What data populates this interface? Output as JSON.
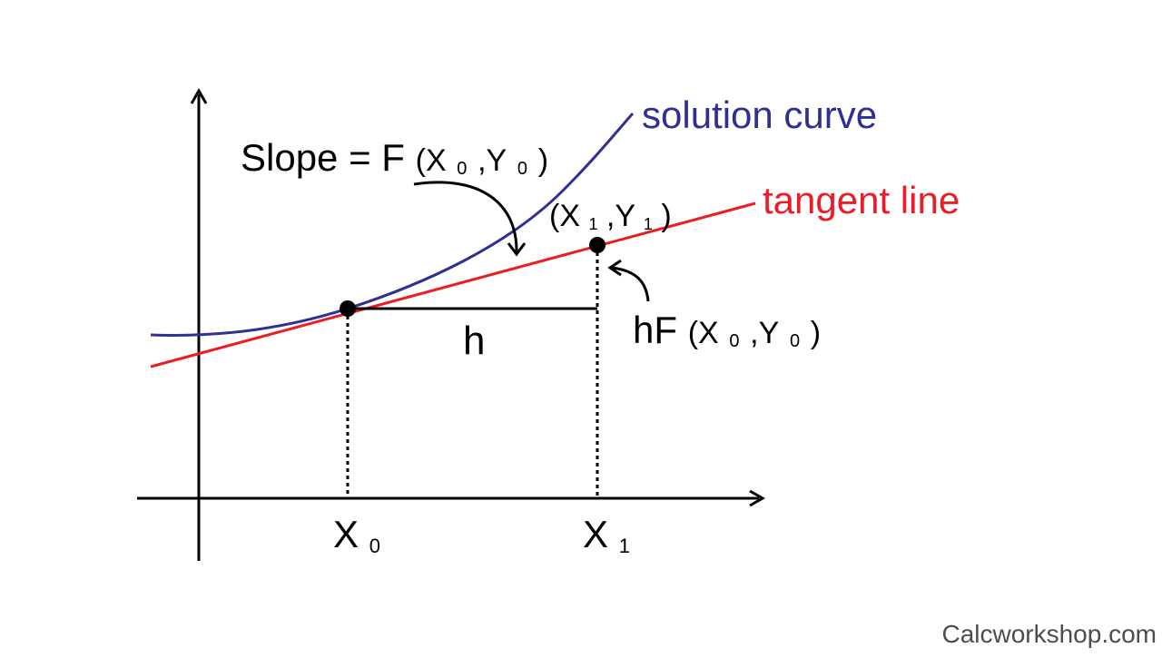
{
  "labels": {
    "solution_curve": "solution curve",
    "tangent_line": "tangent line",
    "slope_prefix": "Slope = F",
    "slope_open": "(X",
    "slope_sub_x": "0",
    "slope_comma": ",Y",
    "slope_sub_y": "0",
    "slope_close": ")",
    "point1_open": "(X",
    "point1_sub_x": "1",
    "point1_comma": ",Y",
    "point1_sub_y": "1",
    "point1_close": ")",
    "h": "h",
    "hf_prefix": "hF",
    "hf_open": "(X",
    "hf_sub_x": "0",
    "hf_comma": ",Y",
    "hf_sub_y": "0",
    "hf_close": ")",
    "x0_main": "X",
    "x0_sub": "0",
    "x1_main": "X",
    "x1_sub": "1"
  },
  "footer": {
    "credit": "Calcworkshop.com"
  },
  "colors": {
    "curve": "#2e3192",
    "tangent": "#ed1c24",
    "ink": "#000000",
    "credit": "#4d4d4d"
  }
}
